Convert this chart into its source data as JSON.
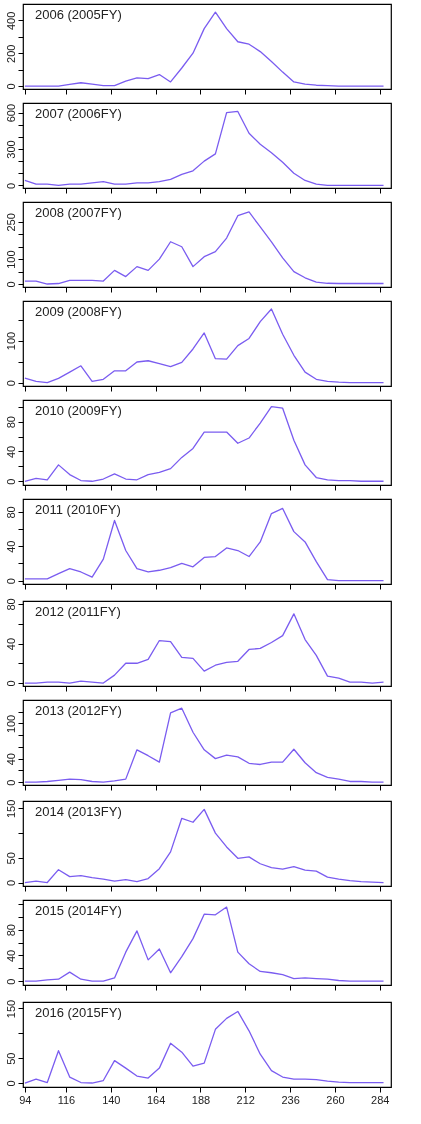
{
  "chart_data": [
    {
      "type": "line",
      "title": "2006 (2005FY)",
      "x": [
        94,
        100,
        106,
        112,
        118,
        124,
        130,
        136,
        142,
        148,
        154,
        160,
        166,
        172,
        178,
        184,
        190,
        196,
        202,
        208,
        214,
        220,
        226,
        232,
        238,
        244,
        250,
        256,
        262,
        268,
        274,
        280,
        286
      ],
      "xlim": [
        93,
        290
      ],
      "ylim": [
        -18,
        500
      ],
      "xticks": [
        94,
        116,
        140,
        164,
        188,
        212,
        236,
        260,
        284
      ],
      "yticks": [
        0,
        {
          "value": 100,
          "label": null
        },
        200,
        {
          "value": 300,
          "label": null
        },
        400
      ],
      "tick_labels": "y",
      "line_style": "solid",
      "series": [
        {
          "color": "#7a5cf0",
          "values": [
            0,
            0,
            0,
            0,
            10,
            20,
            12,
            3,
            2,
            30,
            50,
            45,
            70,
            25,
            110,
            200,
            350,
            450,
            350,
            270,
            255,
            210,
            150,
            85,
            25,
            12,
            5,
            2,
            0,
            0,
            0,
            0,
            0
          ]
        }
      ]
    },
    {
      "type": "line",
      "title": "2007 (2006FY)",
      "x": [
        94,
        100,
        106,
        112,
        118,
        124,
        130,
        136,
        142,
        148,
        154,
        160,
        166,
        172,
        178,
        184,
        190,
        196,
        202,
        208,
        214,
        220,
        226,
        232,
        238,
        244,
        250,
        256,
        262,
        268,
        274,
        280,
        286
      ],
      "xlim": [
        93,
        290
      ],
      "ylim": [
        -22,
        680
      ],
      "xticks": [
        94,
        116,
        140,
        164,
        188,
        212,
        236,
        260,
        284
      ],
      "yticks": [
        0,
        {
          "value": 100,
          "label": null
        },
        {
          "value": 200,
          "label": null
        },
        300,
        {
          "value": 400,
          "label": null
        },
        {
          "value": 500,
          "label": null
        },
        600
      ],
      "tick_labels": "y",
      "line_style": "solid",
      "series": [
        {
          "color": "#7a5cf0",
          "values": [
            40,
            10,
            10,
            0,
            10,
            10,
            20,
            30,
            10,
            10,
            20,
            20,
            30,
            50,
            90,
            120,
            200,
            260,
            600,
            610,
            430,
            340,
            270,
            190,
            100,
            40,
            10,
            0,
            0,
            0,
            0,
            0,
            0
          ]
        }
      ]
    },
    {
      "type": "line",
      "title": "2008 (2007FY)",
      "x": [
        94,
        100,
        106,
        112,
        118,
        124,
        130,
        136,
        142,
        148,
        154,
        160,
        166,
        172,
        178,
        184,
        190,
        196,
        202,
        208,
        214,
        220,
        226,
        232,
        238,
        244,
        250,
        256,
        262,
        268,
        274,
        280,
        286
      ],
      "xlim": [
        93,
        290
      ],
      "ylim": [
        -12,
        330
      ],
      "xticks": [
        94,
        116,
        140,
        164,
        188,
        212,
        236,
        260,
        284
      ],
      "yticks": [
        0,
        {
          "value": 50,
          "label": null
        },
        100,
        {
          "value": 150,
          "label": null
        },
        {
          "value": 200,
          "label": null
        },
        250
      ],
      "tick_labels": "y",
      "line_style": "solid",
      "series": [
        {
          "color": "#7a5cf0",
          "values": [
            12,
            12,
            0,
            2,
            15,
            15,
            15,
            12,
            55,
            30,
            70,
            55,
            100,
            170,
            150,
            70,
            110,
            130,
            185,
            275,
            290,
            230,
            170,
            105,
            50,
            25,
            8,
            3,
            2,
            2,
            2,
            2,
            2
          ]
        }
      ]
    },
    {
      "type": "line",
      "title": "2009 (2008FY)",
      "x": [
        94,
        100,
        106,
        112,
        118,
        124,
        130,
        136,
        142,
        148,
        154,
        160,
        166,
        172,
        178,
        184,
        190,
        196,
        202,
        208,
        214,
        220,
        226,
        232,
        238,
        244,
        250,
        256,
        262,
        268,
        274,
        280,
        286
      ],
      "xlim": [
        93,
        290
      ],
      "ylim": [
        -8,
        194
      ],
      "xticks": [
        94,
        116,
        140,
        164,
        188,
        212,
        236,
        260,
        284
      ],
      "yticks": [
        0,
        {
          "value": 50,
          "label": null
        },
        100,
        {
          "value": 150,
          "label": null
        }
      ],
      "tick_labels": "y",
      "line_style": "solid",
      "series": [
        {
          "color": "#7a5cf0",
          "values": [
            11,
            3,
            0,
            10,
            25,
            40,
            3,
            8,
            28,
            28,
            49,
            52,
            45,
            38,
            48,
            80,
            118,
            57,
            56,
            88,
            105,
            145,
            175,
            115,
            65,
            25,
            8,
            3,
            1,
            0,
            0,
            0,
            0
          ]
        }
      ]
    },
    {
      "type": "line",
      "title": "2010 (2009FY)",
      "x": [
        94,
        100,
        106,
        112,
        118,
        124,
        130,
        136,
        142,
        148,
        154,
        160,
        166,
        172,
        178,
        184,
        190,
        196,
        202,
        208,
        214,
        220,
        226,
        232,
        238,
        244,
        250,
        256,
        262,
        268,
        274,
        280,
        286
      ],
      "xlim": [
        93,
        290
      ],
      "ylim": [
        -5,
        109
      ],
      "xticks": [
        94,
        116,
        140,
        164,
        188,
        212,
        236,
        260,
        284
      ],
      "yticks": [
        0,
        {
          "value": 20,
          "label": null
        },
        40,
        {
          "value": 60,
          "label": null
        },
        80,
        {
          "value": 100,
          "label": null
        }
      ],
      "tick_labels": "y",
      "line_style": "solid",
      "series": [
        {
          "color": "#7a5cf0",
          "values": [
            0,
            4,
            2,
            22,
            9,
            1,
            0,
            3,
            10,
            3,
            2,
            9,
            12,
            17,
            32,
            44,
            66,
            66,
            66,
            51,
            58,
            78,
            100,
            98,
            55,
            22,
            5,
            2,
            1,
            1,
            0,
            0,
            0
          ]
        }
      ]
    },
    {
      "type": "line",
      "title": "2011 (2010FY)",
      "x": [
        94,
        100,
        106,
        112,
        118,
        124,
        130,
        136,
        142,
        148,
        154,
        160,
        166,
        172,
        178,
        184,
        190,
        196,
        202,
        208,
        214,
        220,
        226,
        232,
        238,
        244,
        250,
        256,
        262,
        268,
        274,
        280,
        286
      ],
      "xlim": [
        93,
        290
      ],
      "ylim": [
        -4,
        95
      ],
      "xticks": [
        94,
        116,
        140,
        164,
        188,
        212,
        236,
        260,
        284
      ],
      "yticks": [
        0,
        {
          "value": 20,
          "label": null
        },
        40,
        {
          "value": 60,
          "label": null
        },
        80
      ],
      "tick_labels": "y",
      "line_style": "solid",
      "series": [
        {
          "color": "#7a5cf0",
          "values": [
            2,
            2,
            2,
            8,
            14,
            10,
            4,
            25,
            70,
            35,
            14,
            10,
            12,
            15,
            20,
            16,
            27,
            28,
            38,
            35,
            28,
            45,
            78,
            84,
            57,
            45,
            22,
            1,
            0,
            0,
            0,
            0,
            0
          ]
        }
      ]
    },
    {
      "type": "line",
      "title": "2012 (2011FY)",
      "x": [
        94,
        100,
        106,
        112,
        118,
        124,
        130,
        136,
        142,
        148,
        154,
        160,
        166,
        172,
        178,
        184,
        190,
        196,
        202,
        208,
        214,
        220,
        226,
        232,
        238,
        244,
        250,
        256,
        262,
        268,
        274,
        280,
        286
      ],
      "xlim": [
        93,
        290
      ],
      "ylim": [
        -3,
        83
      ],
      "xticks": [
        94,
        116,
        140,
        164,
        188,
        212,
        236,
        260,
        284
      ],
      "yticks": [
        0,
        {
          "value": 20,
          "label": null
        },
        40,
        {
          "value": 60,
          "label": null
        },
        80
      ],
      "tick_labels": "y",
      "line_style": "solid",
      "series": [
        {
          "color": "#7a5cf0",
          "values": [
            0,
            0,
            1,
            1,
            0,
            2,
            1,
            0,
            8,
            20,
            20,
            24,
            43,
            42,
            26,
            25,
            12,
            18,
            21,
            22,
            34,
            35,
            41,
            48,
            70,
            44,
            28,
            7,
            5,
            1,
            1,
            0,
            1
          ]
        }
      ]
    },
    {
      "type": "line",
      "title": "2013 (2012FY)",
      "x": [
        94,
        100,
        106,
        112,
        118,
        124,
        130,
        136,
        142,
        148,
        154,
        160,
        166,
        172,
        178,
        184,
        190,
        196,
        202,
        208,
        214,
        220,
        226,
        232,
        238,
        244,
        250,
        256,
        262,
        268,
        274,
        280,
        286
      ],
      "xlim": [
        93,
        290
      ],
      "ylim": [
        -5,
        140
      ],
      "xticks": [
        94,
        116,
        140,
        164,
        188,
        212,
        236,
        260,
        284
      ],
      "yticks": [
        0,
        {
          "value": 20,
          "label": null
        },
        40,
        {
          "value": 60,
          "label": null
        },
        {
          "value": 80,
          "label": null
        },
        100,
        {
          "value": 120,
          "label": null
        }
      ],
      "tick_labels": "y",
      "line_style": "solid",
      "series": [
        {
          "color": "#7a5cf0",
          "values": [
            0,
            0,
            1,
            3,
            5,
            4,
            1,
            0,
            2,
            5,
            55,
            45,
            34,
            118,
            126,
            85,
            55,
            40,
            46,
            43,
            32,
            30,
            34,
            34,
            56,
            33,
            16,
            8,
            5,
            1,
            1,
            0,
            0
          ]
        }
      ]
    },
    {
      "type": "line",
      "title": "2014 (2013FY)",
      "x": [
        94,
        100,
        106,
        112,
        118,
        124,
        130,
        136,
        142,
        148,
        154,
        160,
        166,
        172,
        178,
        184,
        190,
        196,
        202,
        208,
        214,
        220,
        226,
        232,
        238,
        244,
        250,
        256,
        262,
        268,
        274,
        280,
        286
      ],
      "xlim": [
        93,
        290
      ],
      "ylim": [
        -7,
        165
      ],
      "xticks": [
        94,
        116,
        140,
        164,
        188,
        212,
        236,
        260,
        284
      ],
      "yticks": [
        0,
        50,
        {
          "value": 100,
          "label": null
        },
        150
      ],
      "tick_labels": "y",
      "line_style": "solid",
      "series": [
        {
          "color": "#7a5cf0",
          "values": [
            0,
            3,
            0,
            26,
            12,
            14,
            10,
            7,
            3,
            6,
            2,
            8,
            28,
            62,
            130,
            122,
            148,
            100,
            72,
            49,
            52,
            38,
            30,
            27,
            32,
            25,
            23,
            11,
            7,
            4,
            2,
            1,
            0
          ]
        }
      ]
    },
    {
      "type": "line",
      "title": "2015 (2014FY)",
      "x": [
        94,
        100,
        106,
        112,
        118,
        124,
        130,
        136,
        142,
        148,
        154,
        160,
        166,
        172,
        178,
        184,
        190,
        196,
        202,
        208,
        214,
        220,
        226,
        232,
        238,
        244,
        250,
        256,
        262,
        268,
        274,
        280,
        286
      ],
      "xlim": [
        93,
        290
      ],
      "ylim": [
        -6,
        126
      ],
      "xticks": [
        94,
        116,
        140,
        164,
        188,
        212,
        236,
        260,
        284
      ],
      "yticks": [
        0,
        {
          "value": 20,
          "label": null
        },
        40,
        {
          "value": 60,
          "label": null
        },
        80,
        {
          "value": 100,
          "label": null
        },
        {
          "value": 120,
          "label": null
        }
      ],
      "tick_labels": "y",
      "line_style": "solid",
      "series": [
        {
          "color": "#7a5cf0",
          "values": [
            0,
            0,
            2,
            3,
            14,
            3,
            0,
            0,
            5,
            45,
            78,
            33,
            50,
            13,
            38,
            66,
            104,
            103,
            115,
            45,
            27,
            15,
            13,
            10,
            4,
            5,
            4,
            3,
            1,
            0,
            0,
            0,
            0
          ]
        }
      ]
    },
    {
      "type": "line",
      "title": "2016 (2015FY)",
      "x": [
        94,
        100,
        106,
        112,
        118,
        124,
        130,
        136,
        142,
        148,
        154,
        160,
        166,
        172,
        178,
        184,
        190,
        196,
        202,
        208,
        214,
        220,
        226,
        232,
        238,
        244,
        250,
        256,
        262,
        268,
        274,
        280,
        286
      ],
      "xlim": [
        93,
        290
      ],
      "ylim": [
        -8,
        163
      ],
      "xticks": [
        94,
        116,
        140,
        164,
        188,
        212,
        236,
        260,
        284
      ],
      "yticks": [
        0,
        50,
        {
          "value": 100,
          "label": null
        },
        150
      ],
      "line_style": "solid",
      "series": [
        {
          "color": "#7a5cf0",
          "values": [
            0,
            8,
            1,
            65,
            12,
            1,
            0,
            5,
            45,
            30,
            14,
            10,
            30,
            80,
            62,
            34,
            40,
            108,
            130,
            144,
            105,
            58,
            25,
            12,
            8,
            8,
            7,
            4,
            2,
            1,
            1,
            1,
            1
          ]
        }
      ]
    }
  ]
}
